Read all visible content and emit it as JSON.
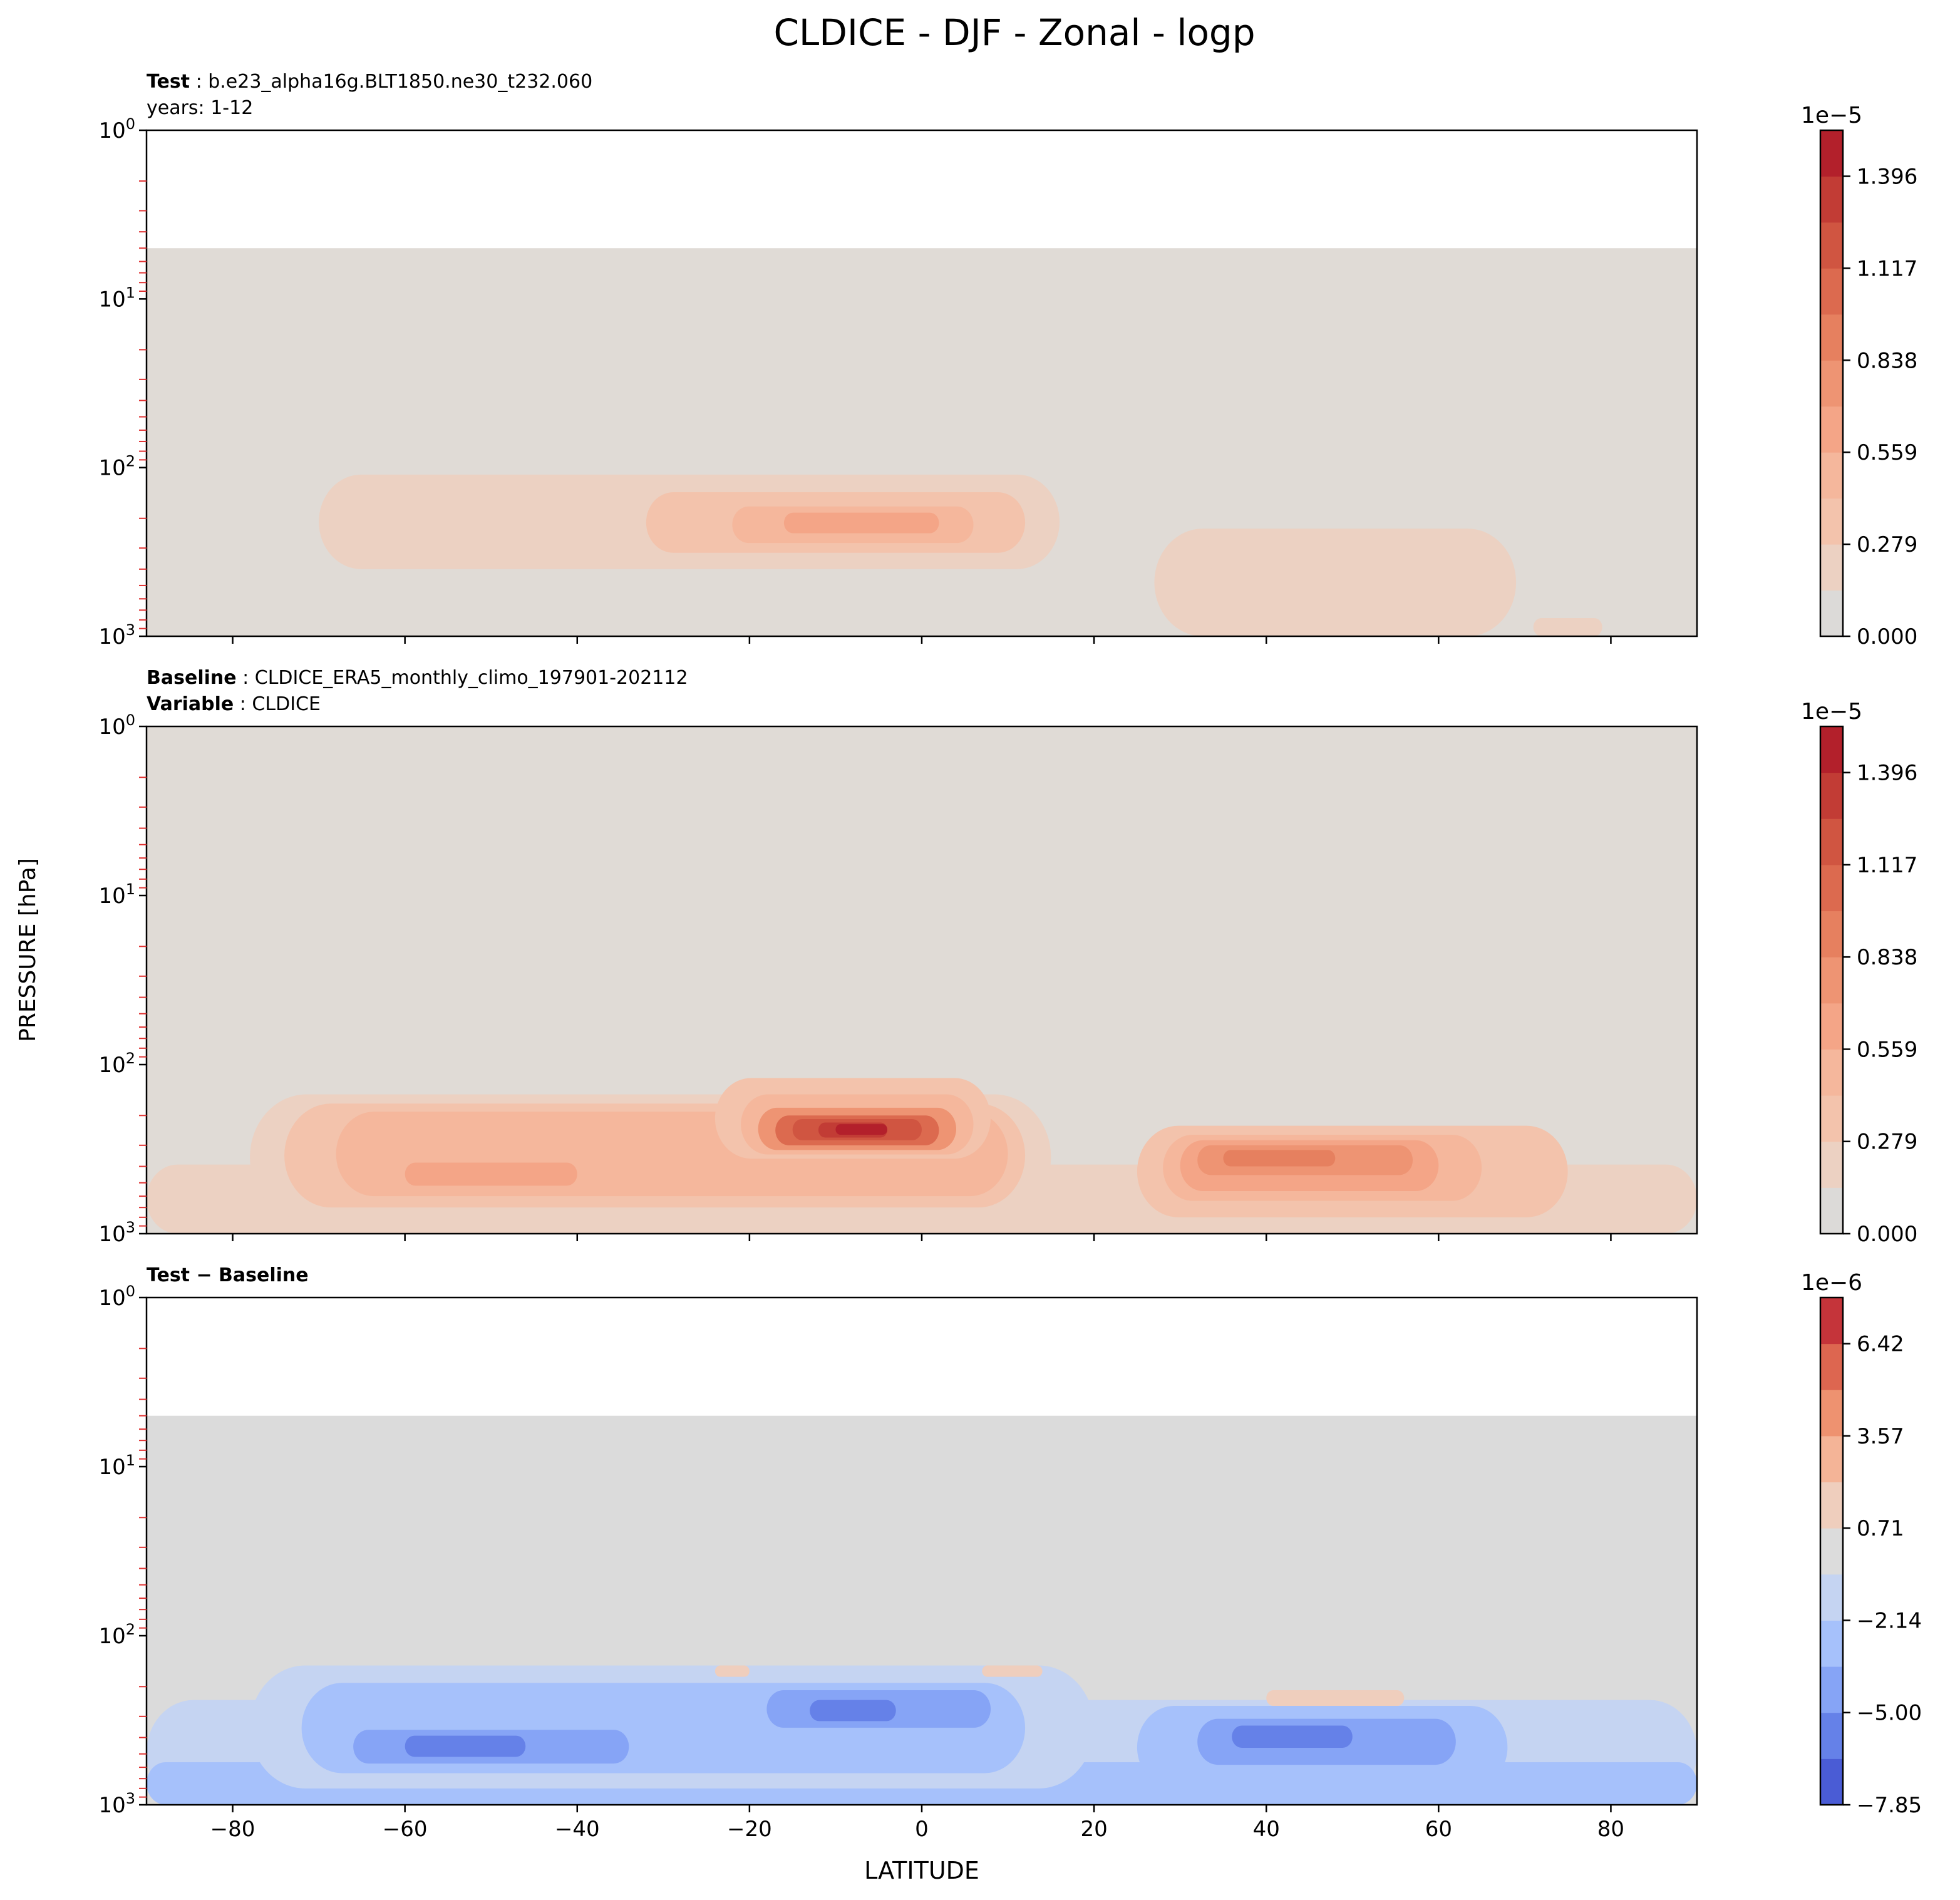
{
  "figure": {
    "title": "CLDICE - DJF - Zonal - logp",
    "ylabel": "PRESSURE [hPa]",
    "xlabel": "LATITUDE"
  },
  "chart_data": [
    {
      "type": "contourf",
      "panel": "test",
      "header": [
        {
          "bold": "Test",
          "text": "b.e23_alpha16g.BLT1850.ne30_t232.060"
        },
        {
          "bold": "",
          "text": "years: 1-12"
        }
      ],
      "xlim": [
        -90,
        90
      ],
      "ylim": [
        1,
        1000
      ],
      "yscale": "log",
      "x_ticks": [
        -80,
        -60,
        -40,
        -20,
        0,
        20,
        40,
        60,
        80
      ],
      "y_ticks": [
        {
          "base": "10",
          "exp": "0"
        },
        {
          "base": "10",
          "exp": "1"
        },
        {
          "base": "10",
          "exp": "2"
        },
        {
          "base": "10",
          "exp": "3"
        }
      ],
      "show_x_ticklabels": false,
      "top_cut_hpa": 5,
      "background": "#e0dbd6",
      "colorbar": {
        "exponent": "1e−5",
        "tick_labels": [
          "0.000",
          "0.279",
          "0.559",
          "0.838",
          "1.117",
          "1.396"
        ],
        "tick_levels": [
          0,
          2,
          4,
          6,
          8,
          10
        ],
        "n_levels": 11,
        "colors": [
          "#dcdad8",
          "#ecd1c2",
          "#f3c3ac",
          "#f5b79c",
          "#f4a587",
          "#ee9473",
          "#e6805f",
          "#dc6a4f",
          "#d05541",
          "#c23c35",
          "#b3202b"
        ]
      },
      "features": [
        {
          "lat_min": -70,
          "lat_max": 16,
          "p_top": 110,
          "p_bot": 400,
          "level": 1
        },
        {
          "lat_min": -32,
          "lat_max": 12,
          "p_top": 140,
          "p_bot": 320,
          "level": 2
        },
        {
          "lat_min": -22,
          "lat_max": 6,
          "p_top": 170,
          "p_bot": 280,
          "level": 3
        },
        {
          "lat_min": -16,
          "lat_max": 2,
          "p_top": 185,
          "p_bot": 245,
          "level": 4
        },
        {
          "lat_min": 27,
          "lat_max": 69,
          "p_top": 230,
          "p_bot": 1000,
          "level": 1
        },
        {
          "lat_min": 33,
          "lat_max": 58,
          "p_top": 260,
          "p_bot": 420,
          "level": 1
        },
        {
          "lat_min": 71,
          "lat_max": 79,
          "p_top": 780,
          "p_bot": 1000,
          "level": 1
        }
      ]
    },
    {
      "type": "contourf",
      "panel": "baseline",
      "header": [
        {
          "bold": "Baseline",
          "text": "CLDICE_ERA5_monthly_climo_197901-202112"
        },
        {
          "bold": "Variable",
          "text": "CLDICE"
        }
      ],
      "xlim": [
        -90,
        90
      ],
      "ylim": [
        1,
        1000
      ],
      "yscale": "log",
      "x_ticks": [
        -80,
        -60,
        -40,
        -20,
        0,
        20,
        40,
        60,
        80
      ],
      "y_ticks": [
        {
          "base": "10",
          "exp": "0"
        },
        {
          "base": "10",
          "exp": "1"
        },
        {
          "base": "10",
          "exp": "2"
        },
        {
          "base": "10",
          "exp": "3"
        }
      ],
      "show_x_ticklabels": false,
      "top_cut_hpa": 1,
      "background": "#e0dbd6",
      "colorbar": {
        "exponent": "1e−5",
        "tick_labels": [
          "0.000",
          "0.279",
          "0.559",
          "0.838",
          "1.117",
          "1.396"
        ],
        "tick_levels": [
          0,
          2,
          4,
          6,
          8,
          10
        ],
        "n_levels": 11,
        "colors": [
          "#dcdad8",
          "#ecd1c2",
          "#f3c3ac",
          "#f5b79c",
          "#f4a587",
          "#ee9473",
          "#e6805f",
          "#dc6a4f",
          "#d05541",
          "#c23c35",
          "#b3202b"
        ]
      },
      "features": [
        {
          "lat_min": -90,
          "lat_max": 90,
          "p_top": 390,
          "p_bot": 1000,
          "level": 1
        },
        {
          "lat_min": -78,
          "lat_max": 15,
          "p_top": 150,
          "p_bot": 830,
          "level": 1
        },
        {
          "lat_min": -74,
          "lat_max": 12,
          "p_top": 170,
          "p_bot": 700,
          "level": 2
        },
        {
          "lat_min": -68,
          "lat_max": 10,
          "p_top": 190,
          "p_bot": 600,
          "level": 3
        },
        {
          "lat_min": -60,
          "lat_max": -40,
          "p_top": 380,
          "p_bot": 520,
          "level": 4
        },
        {
          "lat_min": -24,
          "lat_max": 8,
          "p_top": 120,
          "p_bot": 360,
          "level": 2
        },
        {
          "lat_min": -21,
          "lat_max": 6,
          "p_top": 150,
          "p_bot": 340,
          "level": 3
        },
        {
          "lat_min": -19,
          "lat_max": 4,
          "p_top": 180,
          "p_bot": 320,
          "level": 5
        },
        {
          "lat_min": -17,
          "lat_max": 2,
          "p_top": 200,
          "p_bot": 300,
          "level": 7
        },
        {
          "lat_min": -15,
          "lat_max": 0,
          "p_top": 210,
          "p_bot": 280,
          "level": 8
        },
        {
          "lat_min": -12,
          "lat_max": -4,
          "p_top": 220,
          "p_bot": 270,
          "level": 9
        },
        {
          "lat_min": -10,
          "lat_max": -4,
          "p_top": 225,
          "p_bot": 260,
          "level": 10
        },
        {
          "lat_min": 25,
          "lat_max": 75,
          "p_top": 230,
          "p_bot": 800,
          "level": 2
        },
        {
          "lat_min": 28,
          "lat_max": 65,
          "p_top": 260,
          "p_bot": 640,
          "level": 3
        },
        {
          "lat_min": 30,
          "lat_max": 60,
          "p_top": 280,
          "p_bot": 560,
          "level": 4
        },
        {
          "lat_min": 32,
          "lat_max": 57,
          "p_top": 300,
          "p_bot": 450,
          "level": 5
        },
        {
          "lat_min": 35,
          "lat_max": 48,
          "p_top": 320,
          "p_bot": 400,
          "level": 6
        }
      ]
    },
    {
      "type": "contourf",
      "panel": "difference",
      "header": [
        {
          "bold": "Test − Baseline",
          "text": ""
        }
      ],
      "xlim": [
        -90,
        90
      ],
      "ylim": [
        1,
        1000
      ],
      "yscale": "log",
      "x_ticks": [
        -80,
        -60,
        -40,
        -20,
        0,
        20,
        40,
        60,
        80
      ],
      "x_tick_labels": [
        "−80",
        "−60",
        "−40",
        "−20",
        "0",
        "20",
        "40",
        "60",
        "80"
      ],
      "y_ticks": [
        {
          "base": "10",
          "exp": "0"
        },
        {
          "base": "10",
          "exp": "1"
        },
        {
          "base": "10",
          "exp": "2"
        },
        {
          "base": "10",
          "exp": "3"
        }
      ],
      "show_x_ticklabels": true,
      "top_cut_hpa": 5,
      "background": "#dbdbdb",
      "colorbar": {
        "exponent": "1e−6",
        "tick_labels": [
          "−7.85",
          "−5.00",
          "−2.14",
          "0.71",
          "3.57",
          "6.42"
        ],
        "tick_levels": [
          0,
          2,
          4,
          6,
          8,
          10
        ],
        "n_levels": 11,
        "colors": [
          "#4a5cd5",
          "#6581e8",
          "#86a4f6",
          "#a6c1fb",
          "#c5d4f2",
          "#dcdcdc",
          "#efcebd",
          "#f4b497",
          "#ee9270",
          "#dd6650",
          "#c5343a"
        ]
      },
      "features": [
        {
          "lat_min": -90,
          "lat_max": 90,
          "p_top": 240,
          "p_bot": 1000,
          "level": 4
        },
        {
          "lat_min": -90,
          "lat_max": 90,
          "p_top": 560,
          "p_bot": 1000,
          "level": 3
        },
        {
          "lat_min": -78,
          "lat_max": 20,
          "p_top": 150,
          "p_bot": 800,
          "level": 4
        },
        {
          "lat_min": -72,
          "lat_max": 12,
          "p_top": 190,
          "p_bot": 650,
          "level": 3
        },
        {
          "lat_min": -66,
          "lat_max": -34,
          "p_top": 360,
          "p_bot": 570,
          "level": 2
        },
        {
          "lat_min": -60,
          "lat_max": -46,
          "p_top": 390,
          "p_bot": 520,
          "level": 1
        },
        {
          "lat_min": -18,
          "lat_max": 8,
          "p_top": 210,
          "p_bot": 350,
          "level": 2
        },
        {
          "lat_min": -13,
          "lat_max": -3,
          "p_top": 240,
          "p_bot": 320,
          "level": 1
        },
        {
          "lat_min": 0,
          "lat_max": 6,
          "p_top": 245,
          "p_bot": 310,
          "level": 2
        },
        {
          "lat_min": 25,
          "lat_max": 68,
          "p_top": 260,
          "p_bot": 800,
          "level": 3
        },
        {
          "lat_min": 32,
          "lat_max": 62,
          "p_top": 310,
          "p_bot": 580,
          "level": 2
        },
        {
          "lat_min": 36,
          "lat_max": 50,
          "p_top": 340,
          "p_bot": 460,
          "level": 1
        },
        {
          "lat_min": 40,
          "lat_max": 56,
          "p_top": 210,
          "p_bot": 260,
          "level": 6
        },
        {
          "lat_min": -24,
          "lat_max": -20,
          "p_top": 150,
          "p_bot": 175,
          "level": 6
        },
        {
          "lat_min": 7,
          "lat_max": 14,
          "p_top": 150,
          "p_bot": 175,
          "level": 6
        }
      ]
    }
  ]
}
